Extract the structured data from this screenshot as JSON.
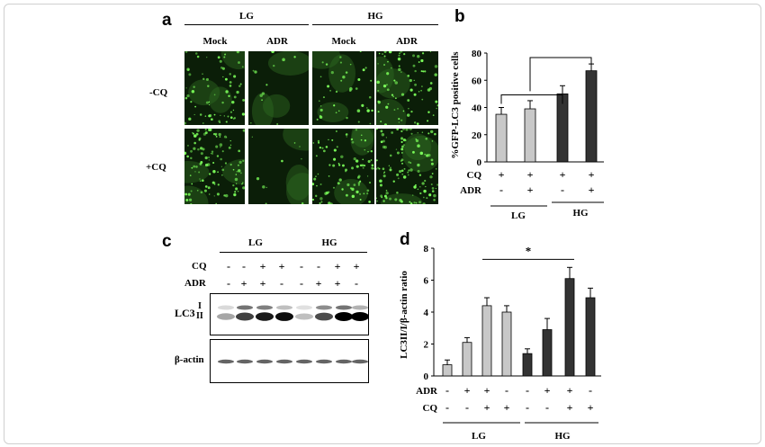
{
  "panels": {
    "a": "a",
    "b": "b",
    "c": "c",
    "d": "d"
  },
  "panel_a": {
    "groups": [
      "LG",
      "HG"
    ],
    "columns": [
      "Mock",
      "ADR",
      "Mock",
      "ADR"
    ],
    "rows": [
      "-CQ",
      "+CQ"
    ]
  },
  "panel_c": {
    "groups": [
      "LG",
      "HG"
    ],
    "row_labels": {
      "cq": "CQ",
      "adr": "ADR",
      "lc3": "LC3",
      "lc3_i": "I",
      "lc3_ii": "II",
      "actin": "β-actin"
    },
    "cq_signs": [
      "-",
      "-",
      "+",
      "+",
      "-",
      "-",
      "+",
      "+"
    ],
    "adr_signs": [
      "-",
      "+",
      "+",
      "-",
      "-",
      "+",
      "+",
      "-"
    ]
  },
  "chart_data": [
    {
      "type": "bar",
      "panel": "b",
      "ylabel": "%GFP-LC3 positive cells",
      "ylim": [
        0,
        80
      ],
      "yticks": [
        0,
        20,
        40,
        60,
        80
      ],
      "values": [
        35,
        39,
        50,
        67
      ],
      "errors": [
        5,
        6,
        6,
        5
      ],
      "colors": [
        "#c8c8c8",
        "#c8c8c8",
        "#333333",
        "#333333"
      ],
      "condition_rows": [
        {
          "label": "CQ",
          "signs": [
            "+",
            "+",
            "+",
            "+"
          ]
        },
        {
          "label": "ADR",
          "signs": [
            "-",
            "+",
            "-",
            "+"
          ]
        }
      ],
      "groups": [
        "LG",
        "HG"
      ]
    },
    {
      "type": "bar",
      "panel": "d",
      "ylabel": "LC3II/I/β-actin ratio",
      "ylim": [
        0,
        8
      ],
      "yticks": [
        0,
        2,
        4,
        6,
        8
      ],
      "values": [
        0.7,
        2.1,
        4.4,
        4.0,
        1.4,
        2.9,
        6.1,
        4.9
      ],
      "errors": [
        0.3,
        0.3,
        0.5,
        0.4,
        0.3,
        0.7,
        0.7,
        0.6
      ],
      "colors": [
        "#c8c8c8",
        "#c8c8c8",
        "#c8c8c8",
        "#c8c8c8",
        "#333333",
        "#333333",
        "#333333",
        "#333333"
      ],
      "condition_rows": [
        {
          "label": "ADR",
          "signs": [
            "-",
            "+",
            "+",
            "-",
            "-",
            "+",
            "+",
            "-"
          ]
        },
        {
          "label": "CQ",
          "signs": [
            "-",
            "-",
            "+",
            "+",
            "-",
            "-",
            "+",
            "+"
          ]
        }
      ],
      "groups": [
        "LG",
        "HG"
      ],
      "significance": "*"
    }
  ]
}
